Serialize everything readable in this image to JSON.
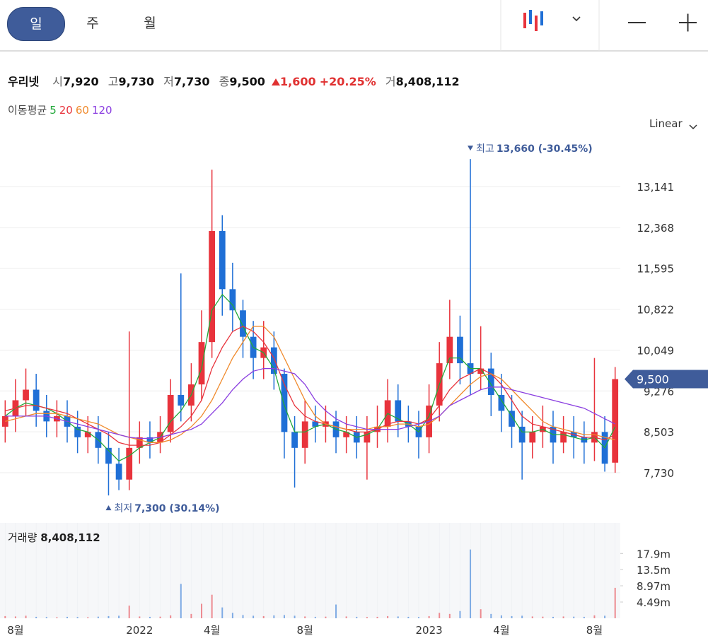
{
  "header": {
    "tabs": [
      "일",
      "주",
      "월"
    ],
    "stock": {
      "name": "우리넷",
      "open_label": "시",
      "open": "7,920",
      "high_label": "고",
      "high": "9,730",
      "low_label": "저",
      "low": "7,730",
      "close_label": "종",
      "close": "9,500",
      "change": "1,600",
      "change_rate": "+20.25%",
      "volume_label": "거",
      "volume": "8,408,112"
    },
    "ma_title": "이동평균"
  },
  "chart_data": {
    "type": "candlestick",
    "scale_label": "Linear",
    "categories": [
      null,
      "8월",
      null,
      null,
      null,
      null,
      null,
      null,
      null,
      null,
      null,
      null,
      null,
      "2022",
      null,
      null,
      null,
      null,
      null,
      null,
      "4월",
      null,
      null,
      null,
      null,
      null,
      null,
      null,
      null,
      "8월",
      null,
      null,
      null,
      null,
      null,
      null,
      null,
      null,
      null,
      null,
      null,
      "2023",
      null,
      null,
      null,
      null,
      null,
      null,
      "4월",
      null,
      null,
      null,
      null,
      null,
      null,
      null,
      null,
      "8월",
      null,
      null
    ],
    "open": [
      8600,
      8800,
      9100,
      9300,
      8900,
      8700,
      8800,
      8600,
      8400,
      8500,
      8200,
      7900,
      7600,
      8200,
      8400,
      8300,
      8500,
      9200,
      9000,
      9400,
      10200,
      12300,
      11200,
      10800,
      10300,
      9900,
      10100,
      9600,
      8500,
      8200,
      8700,
      8600,
      8700,
      8400,
      8500,
      8300,
      8500,
      8600,
      9100,
      8700,
      8600,
      8400,
      9000,
      9800,
      10300,
      9800,
      9600,
      9700,
      9200,
      8900,
      8600,
      8300,
      8500,
      8600,
      8300,
      8500,
      8400,
      8300,
      8500,
      7920
    ],
    "high": [
      9100,
      9500,
      9700,
      9600,
      9200,
      9100,
      9100,
      8900,
      8800,
      8800,
      8500,
      8200,
      10400,
      8700,
      8700,
      8800,
      9500,
      11500,
      9800,
      10800,
      13460,
      12600,
      11700,
      11000,
      10600,
      10600,
      10400,
      9700,
      8800,
      9100,
      9000,
      9000,
      8900,
      8800,
      8800,
      8800,
      9000,
      9500,
      9400,
      9000,
      8900,
      9400,
      10200,
      11000,
      10700,
      13660,
      10500,
      10000,
      9600,
      9200,
      8900,
      8800,
      9000,
      8900,
      8800,
      8800,
      8700,
      9900,
      8800,
      9730
    ],
    "low": [
      8300,
      8500,
      8800,
      8600,
      8400,
      8400,
      8300,
      8100,
      8100,
      7900,
      7300,
      7400,
      7400,
      7900,
      8000,
      8100,
      8300,
      8700,
      8700,
      9100,
      9900,
      10700,
      10400,
      9900,
      9500,
      9500,
      9300,
      8000,
      7450,
      7900,
      8300,
      8300,
      8100,
      8100,
      8000,
      7600,
      8200,
      8300,
      8400,
      8300,
      8000,
      8100,
      8700,
      9500,
      9400,
      9200,
      9300,
      8800,
      8500,
      8200,
      7600,
      8000,
      8200,
      7900,
      8100,
      8000,
      7900,
      7950,
      7750,
      7730
    ],
    "close": [
      8800,
      9100,
      9300,
      8900,
      8700,
      8800,
      8600,
      8400,
      8500,
      8200,
      7900,
      7600,
      8200,
      8400,
      8300,
      8500,
      9200,
      9000,
      9400,
      10200,
      12300,
      11200,
      10800,
      10300,
      9900,
      10100,
      9600,
      8500,
      8200,
      8700,
      8600,
      8700,
      8400,
      8500,
      8300,
      8500,
      8600,
      9100,
      8700,
      8600,
      8400,
      9000,
      9800,
      10300,
      9800,
      9600,
      9700,
      9200,
      8900,
      8600,
      8300,
      8500,
      8600,
      8300,
      8500,
      8400,
      8300,
      8500,
      7900,
      9500
    ],
    "volume": [
      600000,
      500000,
      700000,
      400000,
      350000,
      300000,
      400000,
      350000,
      300000,
      450000,
      600000,
      700000,
      3500000,
      500000,
      400000,
      450000,
      800000,
      9500000,
      1200000,
      4000000,
      6500000,
      3000000,
      1500000,
      900000,
      700000,
      600000,
      800000,
      900000,
      700000,
      500000,
      400000,
      450000,
      3800000,
      500000,
      400000,
      350000,
      400000,
      600000,
      500000,
      400000,
      350000,
      600000,
      1500000,
      1200000,
      2000000,
      19000000,
      2500000,
      1200000,
      800000,
      600000,
      700000,
      500000,
      450000,
      400000,
      500000,
      450000,
      400000,
      800000,
      700000,
      8408112
    ],
    "current_label": "9,500",
    "ma": [
      {
        "name": "5",
        "color": "#22a83a",
        "values": [
          8800,
          8950,
          9050,
          9000,
          8950,
          8850,
          8700,
          8550,
          8500,
          8350,
          8150,
          7950,
          8050,
          8200,
          8300,
          8400,
          8700,
          8900,
          9200,
          9700,
          10800,
          11100,
          10900,
          10500,
          10100,
          10000,
          9700,
          9000,
          8500,
          8500,
          8600,
          8650,
          8550,
          8500,
          8400,
          8450,
          8550,
          8850,
          8750,
          8650,
          8500,
          8800,
          9400,
          9900,
          9900,
          9700,
          9700,
          9400,
          9100,
          8800,
          8500,
          8500,
          8550,
          8450,
          8450,
          8400,
          8350,
          8400,
          8200,
          8600
        ]
      },
      {
        "name": "20",
        "color": "#e8333c",
        "values": [
          8900,
          8950,
          9000,
          9000,
          8950,
          8900,
          8850,
          8750,
          8650,
          8550,
          8450,
          8300,
          8250,
          8250,
          8250,
          8300,
          8450,
          8600,
          8800,
          9100,
          9700,
          10100,
          10400,
          10500,
          10400,
          10200,
          9900,
          9400,
          9000,
          8800,
          8700,
          8650,
          8600,
          8550,
          8500,
          8500,
          8550,
          8650,
          8700,
          8700,
          8650,
          8750,
          9000,
          9300,
          9500,
          9600,
          9700,
          9600,
          9400,
          9100,
          8800,
          8650,
          8600,
          8550,
          8500,
          8450,
          8400,
          8400,
          8350,
          8450
        ]
      },
      {
        "name": "60",
        "color": "#f08a2c",
        "values": [
          8700,
          8750,
          8800,
          8850,
          8850,
          8850,
          8800,
          8750,
          8700,
          8650,
          8550,
          8450,
          8400,
          8350,
          8300,
          8300,
          8350,
          8450,
          8600,
          8800,
          9100,
          9500,
          9900,
          10200,
          10500,
          10500,
          10300,
          9900,
          9500,
          9100,
          8800,
          8650,
          8600,
          8550,
          8550,
          8550,
          8600,
          8600,
          8650,
          8650,
          8600,
          8650,
          8800,
          9000,
          9200,
          9400,
          9550,
          9600,
          9500,
          9300,
          9100,
          8900,
          8700,
          8600,
          8550,
          8500,
          8450,
          8450,
          8400,
          8350
        ]
      },
      {
        "name": "120",
        "color": "#8a3ee0",
        "values": [
          8800,
          8800,
          8800,
          8800,
          8800,
          8750,
          8700,
          8650,
          8600,
          8550,
          8500,
          8450,
          8400,
          8380,
          8380,
          8400,
          8450,
          8500,
          8550,
          8650,
          8850,
          9050,
          9300,
          9500,
          9650,
          9700,
          9700,
          9650,
          9600,
          9400,
          9100,
          8900,
          8750,
          8650,
          8600,
          8550,
          8550,
          8550,
          8550,
          8600,
          8650,
          8700,
          8800,
          9000,
          9100,
          9200,
          9300,
          9350,
          9350,
          9300,
          9250,
          9200,
          9150,
          9100,
          9050,
          9000,
          8950,
          8850,
          8750,
          8650
        ]
      }
    ],
    "up_color": "#e8333c",
    "down_color": "#1f6fd6",
    "grid": true,
    "ylim": [
      6915,
      14130
    ],
    "yticks": [
      {
        "value": 7730,
        "label": "7,730"
      },
      {
        "value": 8503,
        "label": "8,503"
      },
      {
        "value": 9276,
        "label": "9,276"
      },
      {
        "value": 10049,
        "label": "10,049"
      },
      {
        "value": 10822,
        "label": "10,822"
      },
      {
        "value": 11595,
        "label": "11,595"
      },
      {
        "value": 12368,
        "label": "12,368"
      },
      {
        "value": 13141,
        "label": "13,141"
      }
    ],
    "volume_title": "거래량",
    "volume_value_label": "8,408,112",
    "volume_ylim": [
      0,
      26350000
    ],
    "volume_yticks": [
      {
        "value": 4490000,
        "label": "4.49m"
      },
      {
        "value": 8970000,
        "label": "8.97m"
      },
      {
        "value": 13500000,
        "label": "13.5m"
      },
      {
        "value": 17900000,
        "label": "17.9m"
      }
    ],
    "annotations": [
      {
        "label": "최고",
        "text": "13,660 (-30.45%)",
        "index": 45,
        "at": "high"
      },
      {
        "label": "최저",
        "text": "7,300 (30.14%)",
        "index": 10,
        "at": "low"
      }
    ]
  }
}
